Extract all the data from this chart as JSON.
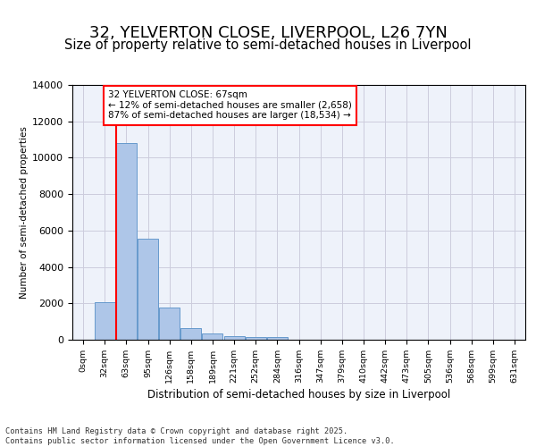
{
  "title1": "32, YELVERTON CLOSE, LIVERPOOL, L26 7YN",
  "title2": "Size of property relative to semi-detached houses in Liverpool",
  "xlabel": "Distribution of semi-detached houses by size in Liverpool",
  "ylabel": "Number of semi-detached properties",
  "annotation_title": "32 YELVERTON CLOSE: 67sqm",
  "annotation_line1": "← 12% of semi-detached houses are smaller (2,658)",
  "annotation_line2": "87% of semi-detached houses are larger (18,534) →",
  "footer1": "Contains HM Land Registry data © Crown copyright and database right 2025.",
  "footer2": "Contains public sector information licensed under the Open Government Licence v3.0.",
  "bin_labels": [
    "0sqm",
    "32sqm",
    "63sqm",
    "95sqm",
    "126sqm",
    "158sqm",
    "189sqm",
    "221sqm",
    "252sqm",
    "284sqm",
    "316sqm",
    "347sqm",
    "379sqm",
    "410sqm",
    "442sqm",
    "473sqm",
    "505sqm",
    "536sqm",
    "568sqm",
    "599sqm",
    "631sqm"
  ],
  "bar_values": [
    0,
    2050,
    10800,
    5550,
    1750,
    650,
    320,
    190,
    130,
    130,
    0,
    0,
    0,
    0,
    0,
    0,
    0,
    0,
    0,
    0,
    0
  ],
  "bar_color": "#aec6e8",
  "bar_edge_color": "#6699cc",
  "ylim": [
    0,
    14000
  ],
  "yticks": [
    0,
    2000,
    4000,
    6000,
    8000,
    10000,
    12000,
    14000
  ],
  "bg_color": "#eef2fa",
  "grid_color": "#ccccdd",
  "title1_fontsize": 13,
  "title2_fontsize": 10.5
}
